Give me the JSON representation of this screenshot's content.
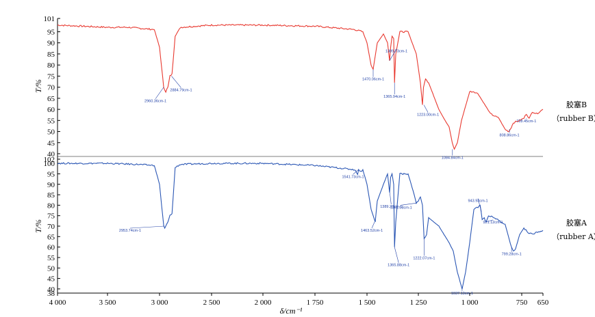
{
  "chart_data": {
    "type": "line",
    "xlabel": "δ/cm⁻¹",
    "xticks": [
      "4 000",
      "3 500",
      "3 000",
      "2 500",
      "2 000",
      "1 750",
      "1 500",
      "1 250",
      "1 000",
      "750",
      "650"
    ],
    "panels": [
      {
        "id": "B",
        "color": "#e8382f",
        "ylabel": "T/%",
        "ylim": [
          40,
          101
        ],
        "yticks": [
          "101",
          "95",
          "90",
          "85",
          "80",
          "75",
          "70",
          "65",
          "60",
          "55",
          "50",
          "45",
          "40"
        ],
        "legend": [
          "胶塞B",
          "（rubber B）"
        ],
        "series": {
          "name": "胶塞B",
          "x": [
            4000,
            3500,
            3300,
            3050,
            3000,
            2960,
            2940,
            2920,
            2900,
            2880,
            2850,
            2800,
            2500,
            2000,
            1750,
            1560,
            1520,
            1500,
            1480,
            1470,
            1450,
            1420,
            1400,
            1390,
            1385,
            1378,
            1370,
            1366,
            1360,
            1340,
            1300,
            1260,
            1240,
            1230,
            1225,
            1215,
            1200,
            1150,
            1120,
            1100,
            1085,
            1075,
            1060,
            1040,
            1000,
            980,
            960,
            900,
            860,
            830,
            812,
            800,
            790,
            760,
            740,
            728,
            715,
            700,
            680,
            650
          ],
          "y": [
            98,
            97,
            97,
            96,
            88,
            70,
            68,
            70,
            75,
            76,
            93,
            97,
            98,
            98,
            97.5,
            96,
            95,
            90,
            80,
            78,
            90,
            94,
            90,
            82,
            88,
            93,
            92,
            72,
            85,
            95,
            95,
            85,
            72,
            62,
            70,
            74,
            72,
            60,
            55,
            52,
            45,
            42,
            45,
            55,
            68,
            68,
            67,
            58,
            56,
            51,
            50,
            52,
            54,
            55,
            56,
            58,
            56,
            59,
            58,
            60
          ]
        },
        "peaks": [
          {
            "label": "2960.36cm-1",
            "x": 2960,
            "y": 70
          },
          {
            "label": "2884.79cm-1",
            "x": 2885,
            "y": 75
          },
          {
            "label": "1470.06cm-1",
            "x": 1470,
            "y": 78
          },
          {
            "label": "1389.73cm-1",
            "x": 1390,
            "y": 82
          },
          {
            "label": "1365.94cm-1",
            "x": 1366,
            "y": 72
          },
          {
            "label": "1223.00cm-1",
            "x": 1223,
            "y": 62
          },
          {
            "label": "1084.84cm-1",
            "x": 1084,
            "y": 42
          },
          {
            "label": "808.86cm-1",
            "x": 809,
            "y": 51
          },
          {
            "label": "728.45cm-1",
            "x": 728,
            "y": 56
          }
        ]
      },
      {
        "id": "A",
        "color": "#2a56b4",
        "ylabel": "T/%",
        "ylim": [
          38,
          102
        ],
        "yticks": [
          "102",
          "100",
          "95",
          "90",
          "85",
          "80",
          "75",
          "70",
          "65",
          "60",
          "55",
          "50",
          "45",
          "40",
          "38"
        ],
        "legend": [
          "胶塞A",
          "（rubber A）"
        ],
        "series": {
          "name": "胶塞A",
          "x": [
            4000,
            3500,
            3200,
            3050,
            3000,
            2960,
            2950,
            2920,
            2900,
            2880,
            2850,
            2800,
            2500,
            2000,
            1750,
            1560,
            1545,
            1540,
            1530,
            1520,
            1500,
            1480,
            1460,
            1450,
            1420,
            1400,
            1390,
            1385,
            1378,
            1370,
            1366,
            1360,
            1340,
            1300,
            1270,
            1260,
            1250,
            1240,
            1230,
            1222,
            1210,
            1200,
            1150,
            1100,
            1080,
            1060,
            1037,
            1020,
            1000,
            980,
            960,
            950,
            945,
            940,
            930,
            921,
            910,
            880,
            850,
            830,
            800,
            790,
            780,
            760,
            740,
            720,
            700,
            680,
            650
          ],
          "y": [
            100,
            100,
            99.5,
            99,
            90,
            70,
            69,
            72,
            75,
            76,
            98,
            99.5,
            100,
            100,
            99,
            97,
            95,
            97,
            96,
            97,
            90,
            78,
            72,
            82,
            90,
            95,
            86,
            93,
            95,
            90,
            60,
            72,
            95,
            95,
            85,
            81,
            82,
            84,
            80,
            64,
            66,
            74,
            70,
            62,
            58,
            48,
            40,
            48,
            62,
            78,
            79,
            80,
            77,
            73,
            74,
            72,
            75,
            74,
            72,
            71,
            60,
            58,
            59,
            66,
            69,
            67,
            66,
            67,
            68
          ]
        },
        "peaks": [
          {
            "label": "2953.74cm-1",
            "x": 2954,
            "y": 70
          },
          {
            "label": "1541.73cm-1",
            "x": 1541,
            "y": 97
          },
          {
            "label": "1463.52cm-1",
            "x": 1463,
            "y": 72
          },
          {
            "label": "1389.20cm-1",
            "x": 1389,
            "y": 86
          },
          {
            "label": "1365.88cm-1",
            "x": 1366,
            "y": 60
          },
          {
            "label": "1261.08cm-1",
            "x": 1261,
            "y": 81
          },
          {
            "label": "1222.07cm-1",
            "x": 1222,
            "y": 64
          },
          {
            "label": "1037.13cm-1",
            "x": 1037,
            "y": 40
          },
          {
            "label": "943.93cm-1",
            "x": 944,
            "y": 77
          },
          {
            "label": "921.12cm-1",
            "x": 921,
            "y": 72
          },
          {
            "label": "799.28cm-1",
            "x": 799,
            "y": 60
          }
        ]
      }
    ]
  }
}
